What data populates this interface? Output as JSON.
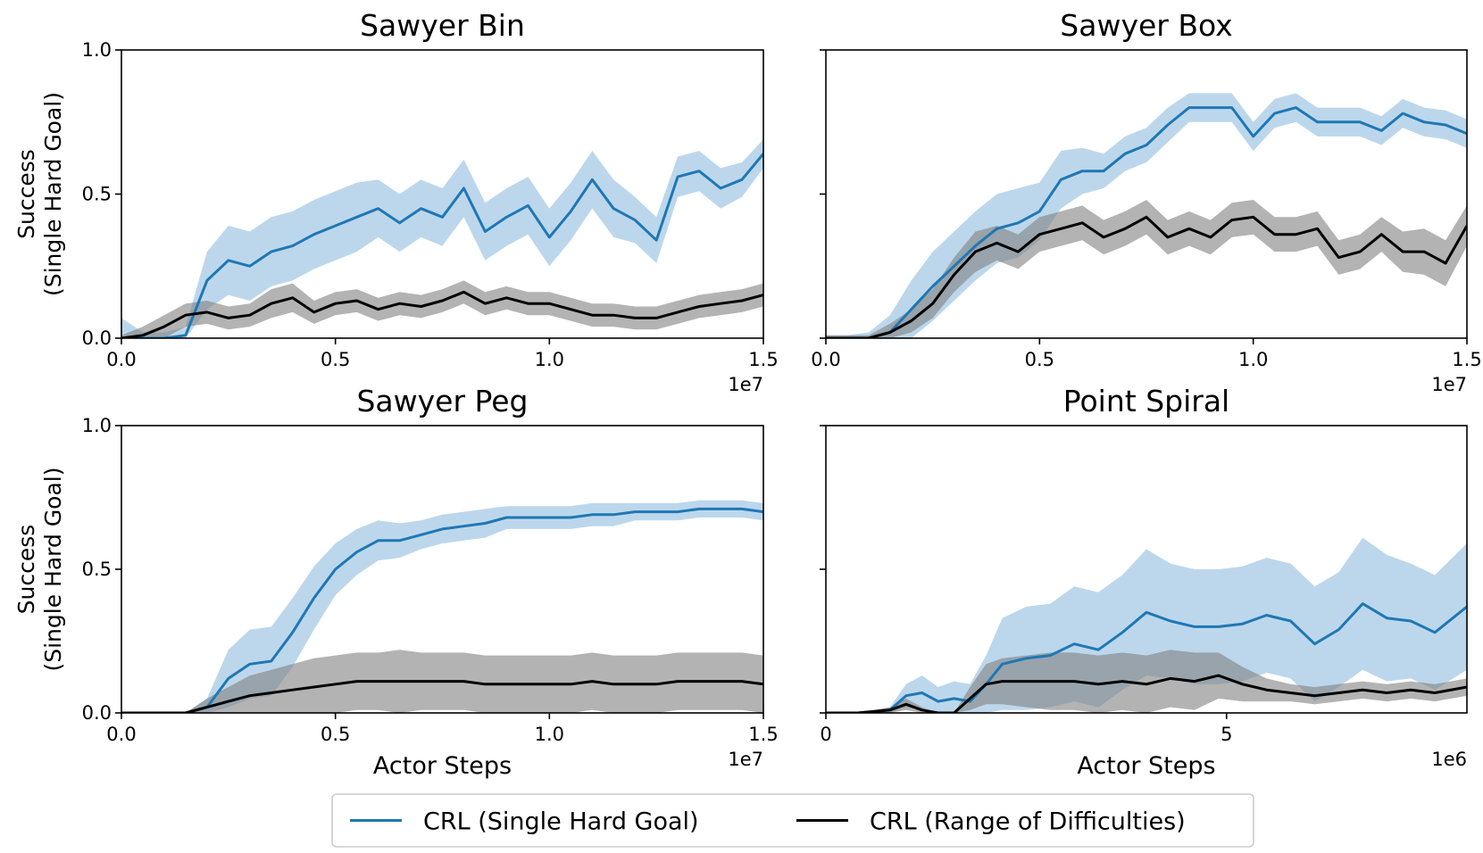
{
  "colors": {
    "crl_single": "#1f77b4",
    "crl_single_band": "#a6c9e6",
    "crl_range": "#000000",
    "crl_range_band": "#808080"
  },
  "legend": {
    "items": [
      {
        "label": "CRL (Single Hard Goal)",
        "color": "#1f77b4"
      },
      {
        "label": "CRL (Range of Difficulties)",
        "color": "#000000"
      }
    ]
  },
  "chart_data": [
    {
      "type": "line",
      "title": "Sawyer Bin",
      "xlabel": "",
      "ylabel": "Success\n(Single Hard Goal)",
      "xlim": [
        0,
        1.5
      ],
      "ylim": [
        0,
        1.0
      ],
      "x_multiplier": "1e7",
      "xticks": [
        0.0,
        0.5,
        1.0,
        1.5
      ],
      "xtick_labels": [
        "0.0",
        "0.5",
        "1.0",
        "1.5"
      ],
      "yticks": [
        0.0,
        0.5,
        1.0
      ],
      "ytick_labels": [
        "0.0",
        "0.5",
        "1.0"
      ],
      "show_ytick_labels": true,
      "series": [
        {
          "name": "CRL (Single Hard Goal)",
          "x": [
            0,
            0.05,
            0.1,
            0.15,
            0.2,
            0.25,
            0.3,
            0.35,
            0.4,
            0.45,
            0.5,
            0.55,
            0.6,
            0.65,
            0.7,
            0.75,
            0.8,
            0.85,
            0.9,
            0.95,
            1.0,
            1.05,
            1.1,
            1.15,
            1.2,
            1.25,
            1.3,
            1.35,
            1.4,
            1.45,
            1.5
          ],
          "values": [
            0,
            0.0,
            0.0,
            0.01,
            0.2,
            0.27,
            0.25,
            0.3,
            0.32,
            0.36,
            0.39,
            0.42,
            0.45,
            0.4,
            0.45,
            0.42,
            0.52,
            0.37,
            0.42,
            0.46,
            0.35,
            0.44,
            0.55,
            0.45,
            0.41,
            0.34,
            0.56,
            0.58,
            0.52,
            0.55,
            0.64
          ],
          "band": [
            0.07,
            0.02,
            0.02,
            0.03,
            0.1,
            0.12,
            0.12,
            0.12,
            0.12,
            0.12,
            0.12,
            0.12,
            0.1,
            0.1,
            0.1,
            0.1,
            0.1,
            0.1,
            0.1,
            0.1,
            0.1,
            0.1,
            0.1,
            0.1,
            0.08,
            0.08,
            0.07,
            0.07,
            0.07,
            0.06,
            0.05
          ]
        },
        {
          "name": "CRL (Range of Difficulties)",
          "x": [
            0,
            0.05,
            0.1,
            0.15,
            0.2,
            0.25,
            0.3,
            0.35,
            0.4,
            0.45,
            0.5,
            0.55,
            0.6,
            0.65,
            0.7,
            0.75,
            0.8,
            0.85,
            0.9,
            0.95,
            1.0,
            1.05,
            1.1,
            1.15,
            1.2,
            1.25,
            1.3,
            1.35,
            1.4,
            1.45,
            1.5
          ],
          "values": [
            0,
            0.01,
            0.04,
            0.08,
            0.09,
            0.07,
            0.08,
            0.12,
            0.14,
            0.09,
            0.12,
            0.13,
            0.1,
            0.12,
            0.11,
            0.13,
            0.16,
            0.12,
            0.14,
            0.12,
            0.12,
            0.1,
            0.08,
            0.08,
            0.07,
            0.07,
            0.09,
            0.11,
            0.12,
            0.13,
            0.15
          ],
          "band": [
            0.01,
            0.03,
            0.04,
            0.04,
            0.04,
            0.04,
            0.04,
            0.05,
            0.05,
            0.04,
            0.04,
            0.04,
            0.04,
            0.04,
            0.04,
            0.04,
            0.04,
            0.04,
            0.04,
            0.04,
            0.04,
            0.04,
            0.04,
            0.04,
            0.04,
            0.04,
            0.04,
            0.04,
            0.04,
            0.04,
            0.04
          ]
        }
      ]
    },
    {
      "type": "line",
      "title": "Sawyer Box",
      "xlabel": "",
      "ylabel": "",
      "xlim": [
        0,
        1.5
      ],
      "ylim": [
        0,
        1.0
      ],
      "x_multiplier": "1e7",
      "xticks": [
        0.0,
        0.5,
        1.0,
        1.5
      ],
      "xtick_labels": [
        "0.0",
        "0.5",
        "1.0",
        "1.5"
      ],
      "yticks": [
        0.0,
        0.5,
        1.0
      ],
      "ytick_labels": [
        "0.0",
        "0.5",
        "1.0"
      ],
      "show_ytick_labels": false,
      "series": [
        {
          "name": "CRL (Single Hard Goal)",
          "x": [
            0,
            0.05,
            0.1,
            0.15,
            0.2,
            0.25,
            0.3,
            0.35,
            0.4,
            0.45,
            0.5,
            0.55,
            0.6,
            0.65,
            0.7,
            0.75,
            0.8,
            0.85,
            0.9,
            0.95,
            1.0,
            1.05,
            1.1,
            1.15,
            1.2,
            1.25,
            1.3,
            1.35,
            1.4,
            1.45,
            1.5
          ],
          "values": [
            0,
            0.0,
            0.0,
            0.02,
            0.1,
            0.18,
            0.25,
            0.32,
            0.38,
            0.4,
            0.44,
            0.55,
            0.58,
            0.58,
            0.64,
            0.67,
            0.74,
            0.8,
            0.8,
            0.8,
            0.7,
            0.78,
            0.8,
            0.75,
            0.75,
            0.75,
            0.72,
            0.78,
            0.75,
            0.74,
            0.71
          ],
          "band": [
            0.01,
            0.01,
            0.02,
            0.06,
            0.1,
            0.12,
            0.12,
            0.12,
            0.12,
            0.12,
            0.1,
            0.1,
            0.08,
            0.06,
            0.06,
            0.06,
            0.06,
            0.05,
            0.05,
            0.05,
            0.05,
            0.05,
            0.05,
            0.05,
            0.05,
            0.05,
            0.05,
            0.05,
            0.05,
            0.05,
            0.05
          ]
        },
        {
          "name": "CRL (Range of Difficulties)",
          "x": [
            0,
            0.05,
            0.1,
            0.15,
            0.2,
            0.25,
            0.3,
            0.35,
            0.4,
            0.45,
            0.5,
            0.55,
            0.6,
            0.65,
            0.7,
            0.75,
            0.8,
            0.85,
            0.9,
            0.95,
            1.0,
            1.05,
            1.1,
            1.15,
            1.2,
            1.25,
            1.3,
            1.35,
            1.4,
            1.45,
            1.5
          ],
          "values": [
            0,
            0.0,
            0.0,
            0.02,
            0.06,
            0.12,
            0.22,
            0.3,
            0.33,
            0.3,
            0.36,
            0.38,
            0.4,
            0.35,
            0.38,
            0.42,
            0.35,
            0.38,
            0.35,
            0.41,
            0.42,
            0.36,
            0.36,
            0.38,
            0.28,
            0.3,
            0.36,
            0.3,
            0.3,
            0.26,
            0.39
          ],
          "band": [
            0.01,
            0.01,
            0.01,
            0.03,
            0.04,
            0.05,
            0.06,
            0.07,
            0.06,
            0.06,
            0.06,
            0.06,
            0.06,
            0.06,
            0.06,
            0.06,
            0.06,
            0.06,
            0.06,
            0.06,
            0.06,
            0.06,
            0.06,
            0.06,
            0.06,
            0.06,
            0.06,
            0.07,
            0.08,
            0.08,
            0.07
          ]
        }
      ]
    },
    {
      "type": "line",
      "title": "Sawyer Peg",
      "xlabel": "Actor Steps",
      "ylabel": "Success\n(Single Hard Goal)",
      "xlim": [
        0,
        1.5
      ],
      "ylim": [
        0,
        1.0
      ],
      "x_multiplier": "1e7",
      "xticks": [
        0.0,
        0.5,
        1.0,
        1.5
      ],
      "xtick_labels": [
        "0.0",
        "0.5",
        "1.0",
        "1.5"
      ],
      "yticks": [
        0.0,
        0.5,
        1.0
      ],
      "ytick_labels": [
        "0.0",
        "0.5",
        "1.0"
      ],
      "show_ytick_labels": true,
      "series": [
        {
          "name": "CRL (Single Hard Goal)",
          "x": [
            0,
            0.05,
            0.1,
            0.15,
            0.2,
            0.25,
            0.3,
            0.35,
            0.4,
            0.45,
            0.5,
            0.55,
            0.6,
            0.65,
            0.7,
            0.75,
            0.8,
            0.85,
            0.9,
            0.95,
            1.0,
            1.05,
            1.1,
            1.15,
            1.2,
            1.25,
            1.3,
            1.35,
            1.4,
            1.45,
            1.5
          ],
          "values": [
            0,
            0.0,
            0.0,
            0.0,
            0.02,
            0.12,
            0.17,
            0.18,
            0.28,
            0.4,
            0.5,
            0.56,
            0.6,
            0.6,
            0.62,
            0.64,
            0.65,
            0.66,
            0.68,
            0.68,
            0.68,
            0.68,
            0.69,
            0.69,
            0.7,
            0.7,
            0.7,
            0.71,
            0.71,
            0.71,
            0.7
          ],
          "band": [
            0.0,
            0.0,
            0.0,
            0.0,
            0.03,
            0.1,
            0.12,
            0.12,
            0.12,
            0.11,
            0.09,
            0.08,
            0.07,
            0.06,
            0.05,
            0.05,
            0.05,
            0.05,
            0.04,
            0.04,
            0.04,
            0.04,
            0.04,
            0.04,
            0.03,
            0.03,
            0.03,
            0.03,
            0.03,
            0.03,
            0.03
          ]
        },
        {
          "name": "CRL (Range of Difficulties)",
          "x": [
            0,
            0.05,
            0.1,
            0.15,
            0.2,
            0.25,
            0.3,
            0.35,
            0.4,
            0.45,
            0.5,
            0.55,
            0.6,
            0.65,
            0.7,
            0.75,
            0.8,
            0.85,
            0.9,
            0.95,
            1.0,
            1.05,
            1.1,
            1.15,
            1.2,
            1.25,
            1.3,
            1.35,
            1.4,
            1.45,
            1.5
          ],
          "values": [
            0,
            0.0,
            0.0,
            0.0,
            0.02,
            0.04,
            0.06,
            0.07,
            0.08,
            0.09,
            0.1,
            0.11,
            0.11,
            0.11,
            0.11,
            0.11,
            0.11,
            0.1,
            0.1,
            0.1,
            0.1,
            0.1,
            0.11,
            0.1,
            0.1,
            0.1,
            0.11,
            0.11,
            0.11,
            0.11,
            0.1
          ],
          "band": [
            0.0,
            0.0,
            0.0,
            0.0,
            0.03,
            0.05,
            0.07,
            0.08,
            0.09,
            0.1,
            0.1,
            0.1,
            0.1,
            0.11,
            0.1,
            0.1,
            0.1,
            0.1,
            0.1,
            0.1,
            0.1,
            0.1,
            0.1,
            0.1,
            0.1,
            0.1,
            0.1,
            0.1,
            0.1,
            0.1,
            0.1
          ]
        }
      ]
    },
    {
      "type": "line",
      "title": "Point Spiral",
      "xlabel": "Actor Steps",
      "ylabel": "",
      "xlim": [
        0,
        8
      ],
      "ylim": [
        0,
        1.0
      ],
      "x_multiplier": "1e6",
      "xticks": [
        0,
        5
      ],
      "xtick_labels": [
        "0",
        "5"
      ],
      "yticks": [
        0.0,
        0.5,
        1.0
      ],
      "ytick_labels": [
        "0.0",
        "0.5",
        "1.0"
      ],
      "show_ytick_labels": false,
      "series": [
        {
          "name": "CRL (Single Hard Goal)",
          "x": [
            0,
            0.4,
            0.8,
            1.0,
            1.2,
            1.4,
            1.6,
            1.8,
            2.0,
            2.2,
            2.5,
            2.8,
            3.1,
            3.4,
            3.7,
            4.0,
            4.3,
            4.6,
            4.9,
            5.2,
            5.5,
            5.8,
            6.1,
            6.4,
            6.7,
            7.0,
            7.3,
            7.6,
            8.0
          ],
          "values": [
            0,
            0.0,
            0.01,
            0.06,
            0.07,
            0.04,
            0.05,
            0.04,
            0.1,
            0.17,
            0.19,
            0.2,
            0.24,
            0.22,
            0.28,
            0.35,
            0.32,
            0.3,
            0.3,
            0.31,
            0.34,
            0.32,
            0.24,
            0.29,
            0.38,
            0.33,
            0.32,
            0.28,
            0.37
          ],
          "band": [
            0.0,
            0.0,
            0.01,
            0.04,
            0.06,
            0.05,
            0.06,
            0.06,
            0.1,
            0.16,
            0.18,
            0.18,
            0.2,
            0.2,
            0.2,
            0.22,
            0.2,
            0.2,
            0.2,
            0.2,
            0.2,
            0.2,
            0.2,
            0.2,
            0.23,
            0.22,
            0.2,
            0.2,
            0.22
          ]
        },
        {
          "name": "CRL (Range of Difficulties)",
          "x": [
            0,
            0.4,
            0.8,
            1.0,
            1.2,
            1.4,
            1.6,
            1.8,
            2.0,
            2.2,
            2.5,
            2.8,
            3.1,
            3.4,
            3.7,
            4.0,
            4.3,
            4.6,
            4.9,
            5.2,
            5.5,
            5.8,
            6.1,
            6.4,
            6.7,
            7.0,
            7.3,
            7.6,
            8.0
          ],
          "values": [
            0,
            0.0,
            0.01,
            0.03,
            0.01,
            0.0,
            0.0,
            0.05,
            0.1,
            0.11,
            0.11,
            0.11,
            0.11,
            0.1,
            0.11,
            0.1,
            0.12,
            0.11,
            0.13,
            0.1,
            0.08,
            0.07,
            0.06,
            0.07,
            0.08,
            0.07,
            0.08,
            0.07,
            0.09
          ],
          "band": [
            0.0,
            0.0,
            0.01,
            0.02,
            0.01,
            0.0,
            0.0,
            0.04,
            0.07,
            0.08,
            0.09,
            0.1,
            0.1,
            0.1,
            0.1,
            0.1,
            0.1,
            0.1,
            0.08,
            0.06,
            0.04,
            0.03,
            0.03,
            0.03,
            0.03,
            0.03,
            0.03,
            0.03,
            0.03
          ]
        }
      ]
    }
  ]
}
